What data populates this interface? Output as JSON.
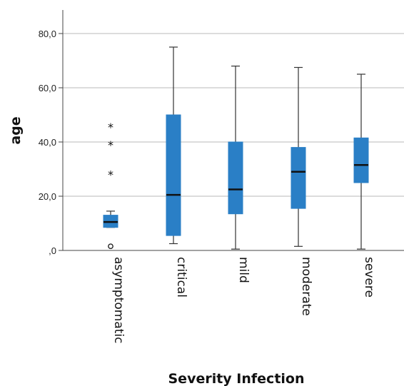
{
  "chart_data": {
    "type": "boxplot",
    "xlabel": "Severity Infection",
    "ylabel": "age",
    "ylim": [
      0,
      90
    ],
    "yticks": [
      0,
      20,
      40,
      60,
      80
    ],
    "ytick_labels": [
      ",0",
      "20,0",
      "40,0",
      "60,0",
      "80,0"
    ],
    "grid": "horizontal",
    "box_color": "#2a7fc6",
    "categories": [
      "asymptomatic",
      "critical",
      "mild",
      "moderate",
      "severe"
    ],
    "boxes": [
      {
        "category": "asymptomatic",
        "whisker_low": 8.5,
        "q1": 8.5,
        "median": 10.5,
        "q3": 13,
        "whisker_high": 14.5,
        "outliers": [
          {
            "value": 46,
            "marker": "*"
          },
          {
            "value": 39.5,
            "marker": "*"
          },
          {
            "value": 28.5,
            "marker": "*"
          },
          {
            "value": 1,
            "marker": "o"
          }
        ]
      },
      {
        "category": "critical",
        "whisker_low": 2.5,
        "q1": 5.5,
        "median": 20.5,
        "q3": 50,
        "whisker_high": 75,
        "outliers": []
      },
      {
        "category": "mild",
        "whisker_low": 0.5,
        "q1": 13.5,
        "median": 22.5,
        "q3": 40,
        "whisker_high": 68,
        "outliers": []
      },
      {
        "category": "moderate",
        "whisker_low": 1.5,
        "q1": 15.5,
        "median": 29,
        "q3": 38,
        "whisker_high": 67.5,
        "outliers": []
      },
      {
        "category": "severe",
        "whisker_low": 0.5,
        "q1": 25,
        "median": 31.5,
        "q3": 41.5,
        "whisker_high": 65,
        "outliers": []
      }
    ]
  }
}
